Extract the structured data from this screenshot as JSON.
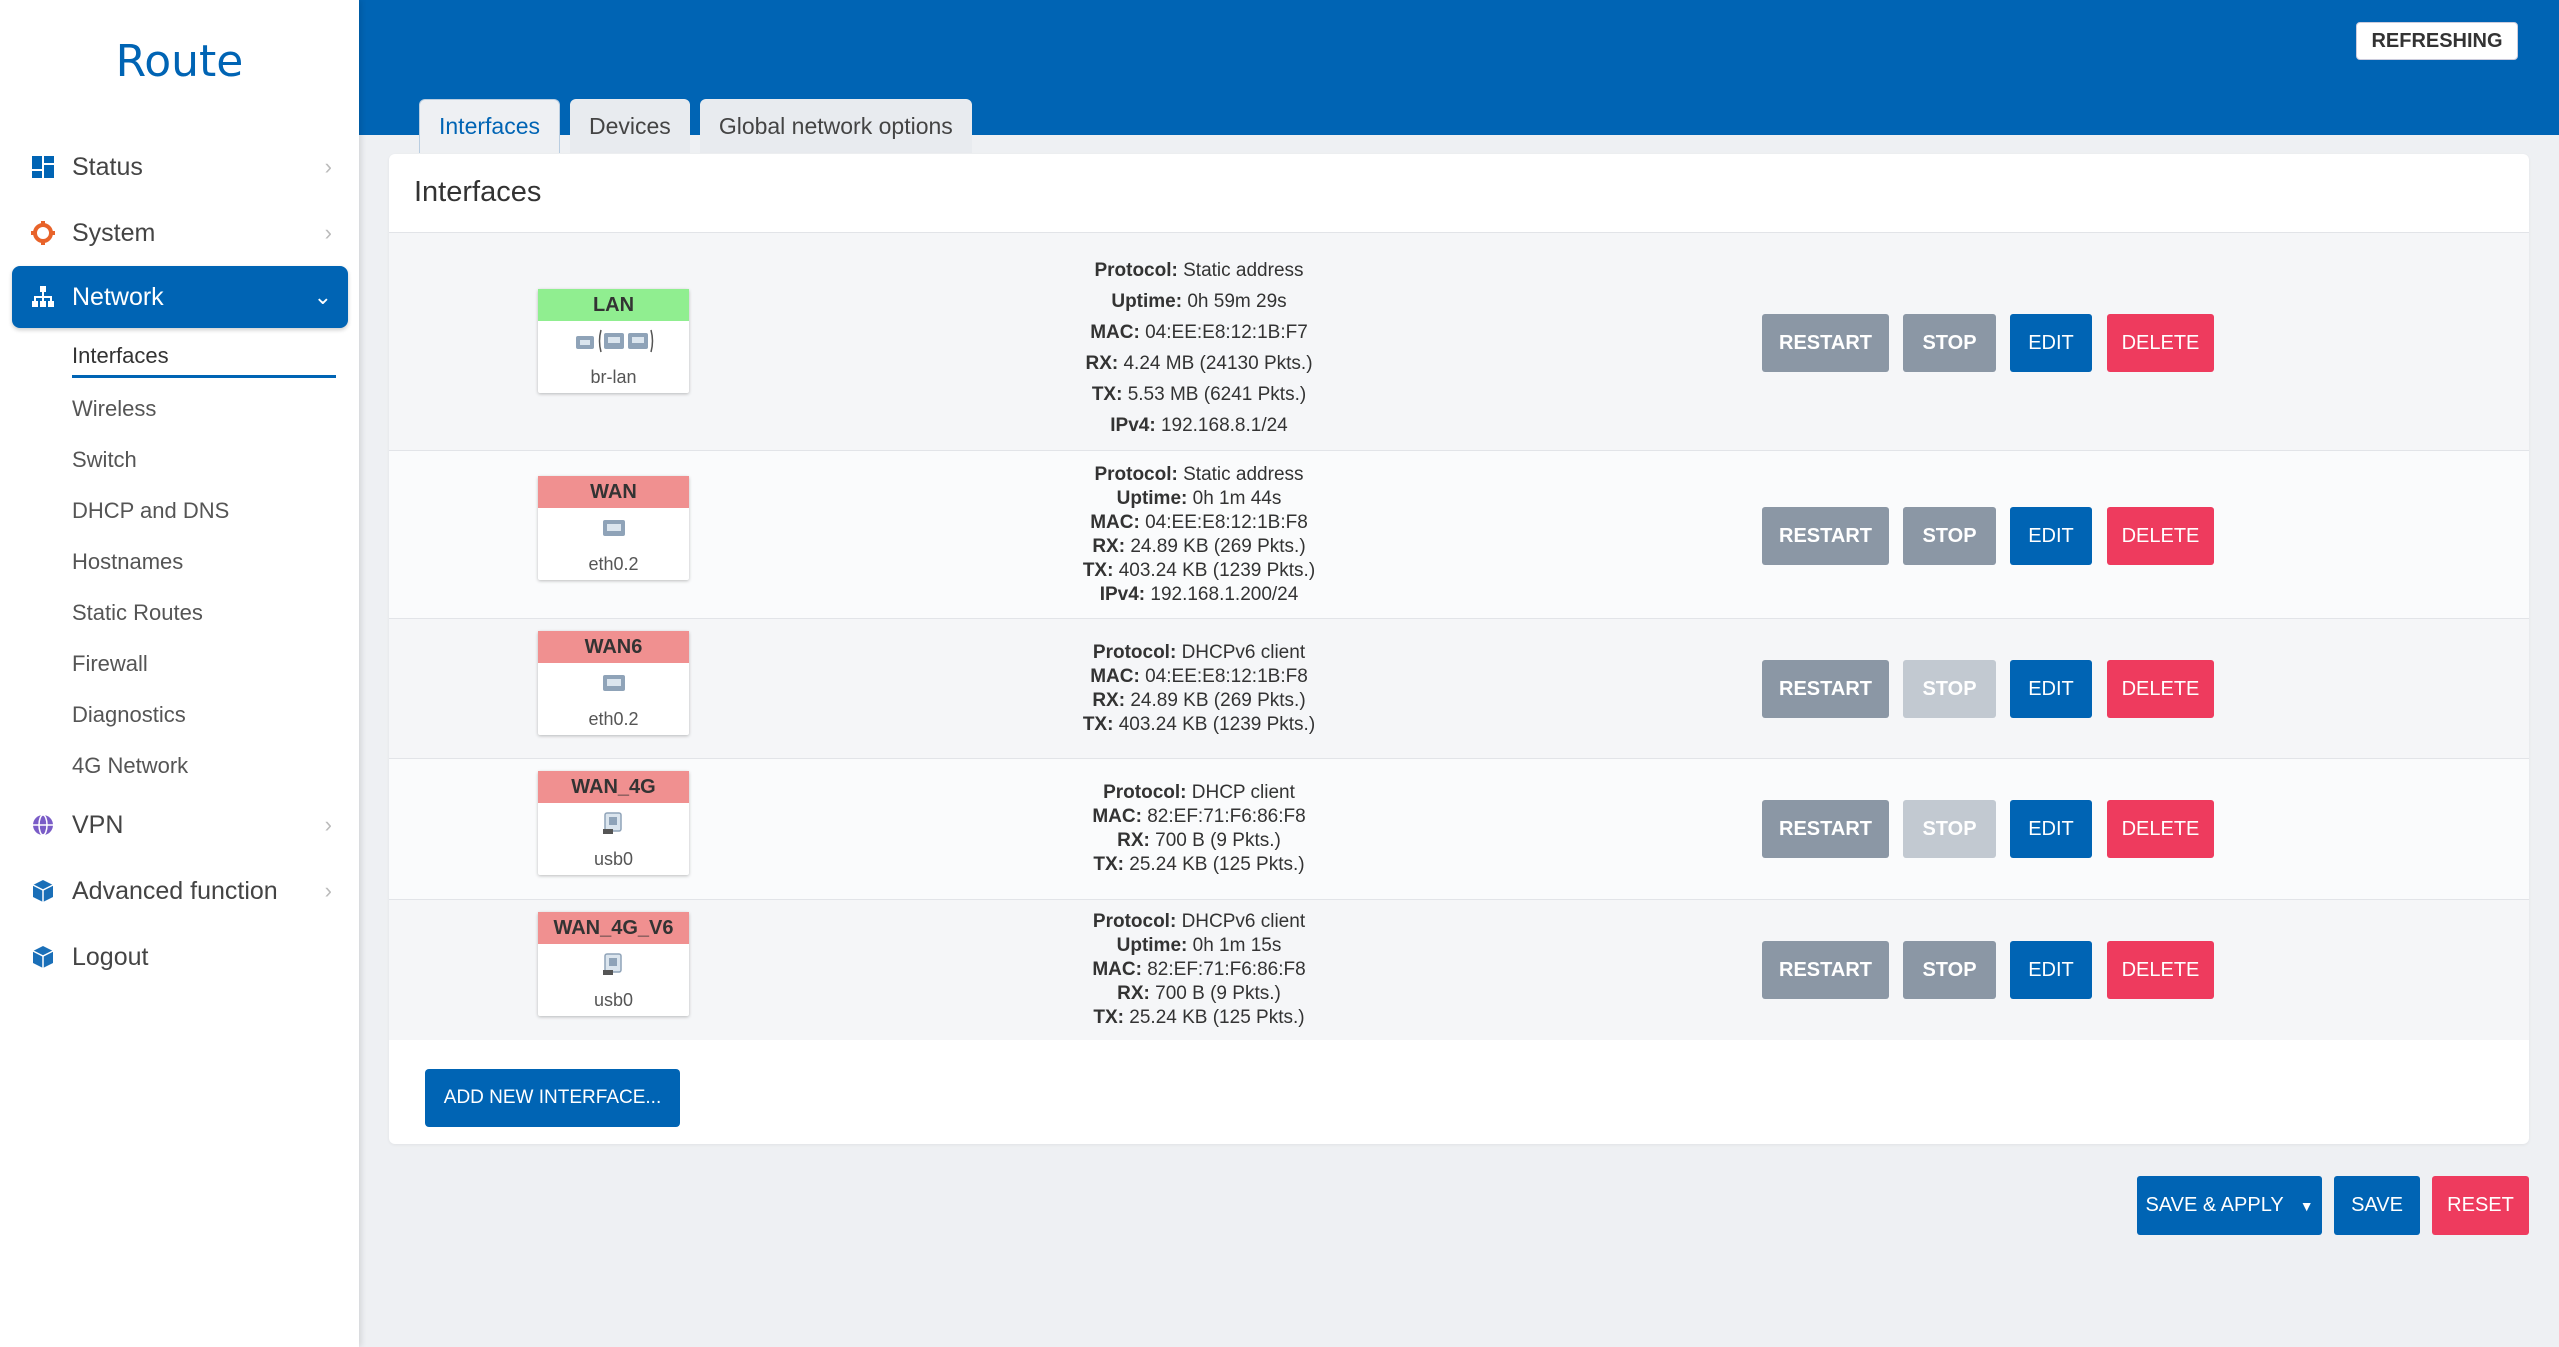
{
  "brand": "Route",
  "sidebar": {
    "items": [
      {
        "label": "Status",
        "icon": "dashboard-icon"
      },
      {
        "label": "System",
        "icon": "gear-icon"
      },
      {
        "label": "Network",
        "icon": "network-icon"
      },
      {
        "label": "VPN",
        "icon": "globe-icon"
      },
      {
        "label": "Advanced function",
        "icon": "cube-icon"
      },
      {
        "label": "Logout",
        "icon": "cube-icon"
      }
    ],
    "network_sub": [
      "Interfaces",
      "Wireless",
      "Switch",
      "DHCP and DNS",
      "Hostnames",
      "Static Routes",
      "Firewall",
      "Diagnostics",
      "4G Network"
    ]
  },
  "header": {
    "refresh_label": "REFRESHING",
    "tabs": [
      "Interfaces",
      "Devices",
      "Global network options"
    ]
  },
  "panel": {
    "title": "Interfaces",
    "add_label": "ADD NEW INTERFACE..."
  },
  "buttons": {
    "restart": "RESTART",
    "stop": "STOP",
    "edit": "EDIT",
    "delete": "DELETE"
  },
  "interfaces": [
    {
      "name": "LAN",
      "device": "br-lan",
      "color": "#90ee90",
      "lines": [
        [
          "Protocol:",
          "Static address"
        ],
        [
          "Uptime:",
          "0h 59m 29s"
        ],
        [
          "MAC:",
          "04:EE:E8:12:1B:F7"
        ],
        [
          "RX:",
          "4.24 MB (24130 Pkts.)"
        ],
        [
          "TX:",
          "5.53 MB (6241 Pkts.)"
        ],
        [
          "IPv4:",
          "192.168.8.1/24"
        ]
      ]
    },
    {
      "name": "WAN",
      "device": "eth0.2",
      "color": "#f09090",
      "lines": [
        [
          "Protocol:",
          "Static address"
        ],
        [
          "Uptime:",
          "0h 1m 44s"
        ],
        [
          "MAC:",
          "04:EE:E8:12:1B:F8"
        ],
        [
          "RX:",
          "24.89 KB (269 Pkts.)"
        ],
        [
          "TX:",
          "403.24 KB (1239 Pkts.)"
        ],
        [
          "IPv4:",
          "192.168.1.200/24"
        ]
      ]
    },
    {
      "name": "WAN6",
      "device": "eth0.2",
      "color": "#f09090",
      "lines": [
        [
          "Protocol:",
          "DHCPv6 client"
        ],
        [
          "MAC:",
          "04:EE:E8:12:1B:F8"
        ],
        [
          "RX:",
          "24.89 KB (269 Pkts.)"
        ],
        [
          "TX:",
          "403.24 KB (1239 Pkts.)"
        ]
      ]
    },
    {
      "name": "WAN_4G",
      "device": "usb0",
      "color": "#f09090",
      "lines": [
        [
          "Protocol:",
          "DHCP client"
        ],
        [
          "MAC:",
          "82:EF:71:F6:86:F8"
        ],
        [
          "RX:",
          "700 B (9 Pkts.)"
        ],
        [
          "TX:",
          "25.24 KB (125 Pkts.)"
        ]
      ]
    },
    {
      "name": "WAN_4G_V6",
      "device": "usb0",
      "color": "#f09090",
      "lines": [
        [
          "Protocol:",
          "DHCPv6 client"
        ],
        [
          "Uptime:",
          "0h 1m 15s"
        ],
        [
          "MAC:",
          "82:EF:71:F6:86:F8"
        ],
        [
          "RX:",
          "700 B (9 Pkts.)"
        ],
        [
          "TX:",
          "25.24 KB (125 Pkts.)"
        ]
      ]
    }
  ],
  "footer_actions": {
    "save_apply": "SAVE & APPLY",
    "save": "SAVE",
    "reset": "RESET"
  },
  "colors": {
    "primary": "#0064b4",
    "danger": "#ee3b5e",
    "neutral": "#8b97a5"
  }
}
